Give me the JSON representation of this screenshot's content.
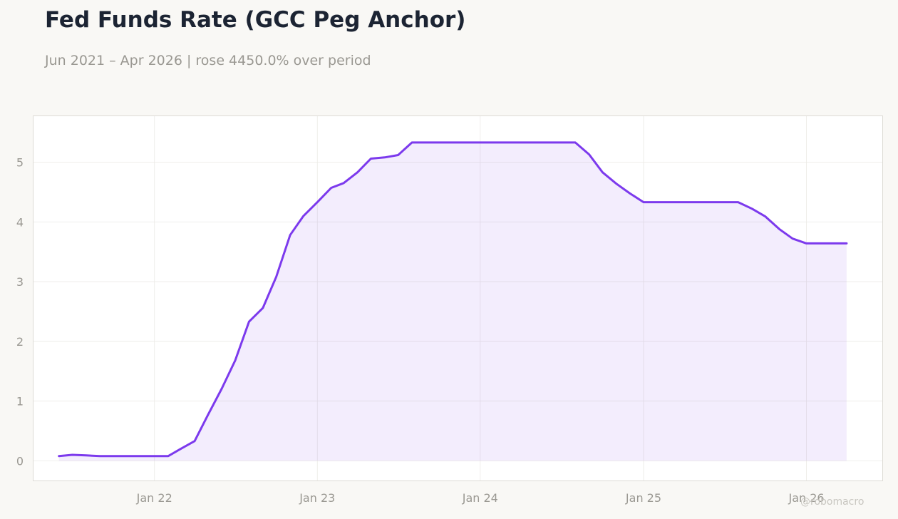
{
  "header": {
    "title": "Fed Funds Rate (GCC Peg Anchor)",
    "subtitle": "Jun 2021 – Apr 2026 | rose 4450.0% over period"
  },
  "watermark": "@robomacro",
  "colors": {
    "line": "#7c3aed",
    "fill": "#7c3aed",
    "background": "#f9f8f5",
    "plot_background": "#ffffff",
    "grid": "#ebeae6",
    "text": "#9a9892",
    "title": "#1c2433"
  },
  "chart_data": {
    "type": "area",
    "title": "Fed Funds Rate (GCC Peg Anchor)",
    "xlabel": "",
    "ylabel": "",
    "grid": true,
    "ylim": [
      -0.33,
      5.77
    ],
    "xlim": [
      "2021-04-05",
      "2026-06-20"
    ],
    "y_ticks": [
      0,
      1,
      2,
      3,
      4,
      5
    ],
    "x_ticks": [
      {
        "date": "2022-01-01",
        "label": "Jan 22"
      },
      {
        "date": "2023-01-01",
        "label": "Jan 23"
      },
      {
        "date": "2024-01-01",
        "label": "Jan 24"
      },
      {
        "date": "2025-01-01",
        "label": "Jan 25"
      },
      {
        "date": "2026-01-01",
        "label": "Jan 26"
      }
    ],
    "series": [
      {
        "x": [
          "2021-06-01",
          "2021-07-01",
          "2021-08-01",
          "2021-09-01",
          "2021-10-01",
          "2021-11-01",
          "2021-12-01",
          "2022-01-01",
          "2022-02-01",
          "2022-03-01",
          "2022-04-01",
          "2022-05-01",
          "2022-06-01",
          "2022-07-01",
          "2022-08-01",
          "2022-09-01",
          "2022-10-01",
          "2022-11-01",
          "2022-12-01",
          "2023-01-01",
          "2023-02-01",
          "2023-03-01",
          "2023-04-01",
          "2023-05-01",
          "2023-06-01",
          "2023-07-01",
          "2023-08-01",
          "2023-09-01",
          "2023-10-01",
          "2023-11-01",
          "2023-12-01",
          "2024-01-01",
          "2024-02-01",
          "2024-03-01",
          "2024-04-01",
          "2024-05-01",
          "2024-06-01",
          "2024-07-01",
          "2024-08-01",
          "2024-09-01",
          "2024-10-01",
          "2024-11-01",
          "2024-12-01",
          "2025-01-01",
          "2025-02-01",
          "2025-03-01",
          "2025-04-01",
          "2025-05-01",
          "2025-06-01",
          "2025-07-01",
          "2025-08-01",
          "2025-09-01",
          "2025-10-01",
          "2025-11-01",
          "2025-12-01",
          "2026-01-01",
          "2026-02-01",
          "2026-03-01",
          "2026-04-01"
        ],
        "values": [
          0.08,
          0.1,
          0.09,
          0.08,
          0.08,
          0.08,
          0.08,
          0.08,
          0.08,
          0.2,
          0.33,
          0.77,
          1.21,
          1.68,
          2.33,
          2.56,
          3.08,
          3.78,
          4.1,
          4.33,
          4.57,
          4.65,
          4.83,
          5.06,
          5.08,
          5.12,
          5.33,
          5.33,
          5.33,
          5.33,
          5.33,
          5.33,
          5.33,
          5.33,
          5.33,
          5.33,
          5.33,
          5.33,
          5.33,
          5.13,
          4.83,
          4.64,
          4.48,
          4.33,
          4.33,
          4.33,
          4.33,
          4.33,
          4.33,
          4.33,
          4.33,
          4.22,
          4.09,
          3.88,
          3.72,
          3.64,
          3.64,
          3.64,
          3.64
        ]
      }
    ]
  }
}
